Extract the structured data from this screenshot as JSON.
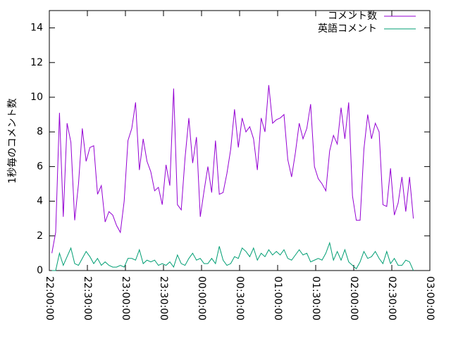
{
  "chart_data": {
    "type": "line",
    "y_label": "1秒毎のコメント数",
    "x": [
      "22:02:00",
      "22:05:00",
      "22:08:00",
      "22:11:00",
      "22:14:00",
      "22:17:00",
      "22:20:00",
      "22:23:00",
      "22:26:00",
      "22:29:00",
      "22:32:00",
      "22:35:00",
      "22:38:00",
      "22:41:00",
      "22:44:00",
      "22:47:00",
      "22:50:00",
      "22:53:00",
      "22:56:00",
      "22:59:00",
      "23:02:00",
      "23:05:00",
      "23:08:00",
      "23:11:00",
      "23:14:00",
      "23:17:00",
      "23:20:00",
      "23:23:00",
      "23:26:00",
      "23:29:00",
      "23:32:00",
      "23:35:00",
      "23:38:00",
      "23:41:00",
      "23:44:00",
      "23:47:00",
      "23:50:00",
      "23:53:00",
      "23:56:00",
      "23:59:00",
      "00:02:00",
      "00:05:00",
      "00:08:00",
      "00:11:00",
      "00:14:00",
      "00:17:00",
      "00:20:00",
      "00:23:00",
      "00:26:00",
      "00:29:00",
      "00:32:00",
      "00:35:00",
      "00:38:00",
      "00:41:00",
      "00:44:00",
      "00:47:00",
      "00:50:00",
      "00:53:00",
      "00:56:00",
      "00:59:00",
      "01:02:00",
      "01:05:00",
      "01:08:00",
      "01:11:00",
      "01:14:00",
      "01:17:00",
      "01:20:00",
      "01:23:00",
      "01:26:00",
      "01:29:00",
      "01:32:00",
      "01:35:00",
      "01:38:00",
      "01:41:00",
      "01:44:00",
      "01:47:00",
      "01:50:00",
      "01:53:00",
      "01:56:00",
      "01:59:00",
      "02:02:00",
      "02:05:00",
      "02:08:00",
      "02:11:00",
      "02:14:00",
      "02:17:00",
      "02:20:00",
      "02:23:00",
      "02:26:00",
      "02:29:00",
      "02:32:00",
      "02:35:00",
      "02:38:00",
      "02:41:00",
      "02:44:00",
      "02:47:00"
    ],
    "series": [
      {
        "name": "コメント数",
        "color": "#9400d3",
        "values": [
          1.0,
          2.2,
          9.1,
          3.1,
          8.5,
          7.4,
          2.9,
          5.0,
          8.2,
          6.3,
          7.1,
          7.2,
          4.4,
          4.9,
          2.8,
          3.4,
          3.2,
          2.6,
          2.2,
          4.0,
          7.5,
          8.2,
          9.7,
          5.8,
          7.6,
          6.3,
          5.7,
          4.6,
          4.8,
          3.8,
          6.1,
          4.9,
          10.5,
          3.8,
          3.5,
          6.5,
          8.8,
          6.2,
          7.7,
          3.1,
          4.6,
          6.0,
          4.5,
          7.5,
          4.4,
          4.5,
          5.6,
          7.0,
          9.3,
          7.1,
          8.8,
          8.0,
          8.3,
          7.6,
          5.8,
          8.8,
          8.0,
          10.7,
          8.5,
          8.7,
          8.8,
          9.0,
          6.4,
          5.4,
          6.8,
          8.5,
          7.6,
          8.2,
          9.6,
          6.0,
          5.3,
          5.0,
          4.6,
          6.9,
          7.8,
          7.3,
          9.4,
          7.6,
          9.7,
          4.3,
          2.9,
          2.9,
          7.0,
          9.0,
          7.6,
          8.5,
          8.0,
          3.8,
          3.7,
          5.9,
          3.2,
          3.9,
          5.4,
          3.4,
          5.4,
          3.0
        ]
      },
      {
        "name": "英語コメント",
        "color": "#009e73",
        "values": [
          0,
          0,
          1.0,
          0.3,
          0.8,
          1.3,
          0.4,
          0.3,
          0.7,
          1.1,
          0.8,
          0.4,
          0.7,
          0.3,
          0.5,
          0.3,
          0.2,
          0.2,
          0.3,
          0.2,
          0.7,
          0.7,
          0.6,
          1.2,
          0.4,
          0.6,
          0.5,
          0.6,
          0.3,
          0.4,
          0.3,
          0.5,
          0.2,
          0.9,
          0.4,
          0.3,
          0.7,
          1.0,
          0.6,
          0.7,
          0.4,
          0.4,
          0.7,
          0.4,
          1.4,
          0.6,
          0.3,
          0.4,
          0.8,
          0.7,
          1.3,
          1.1,
          0.8,
          1.3,
          0.6,
          1.0,
          0.8,
          1.2,
          0.9,
          1.1,
          0.9,
          1.2,
          0.7,
          0.6,
          0.9,
          1.2,
          0.9,
          1.0,
          0.5,
          0.6,
          0.7,
          0.6,
          1.0,
          1.6,
          0.6,
          1.1,
          0.6,
          1.2,
          0.5,
          0.3,
          0.1,
          0.5,
          1.1,
          0.7,
          0.8,
          1.1,
          0.7,
          0.4,
          1.1,
          0.4,
          0.7,
          0.3,
          0.3,
          0.6,
          0.5,
          0
        ]
      }
    ],
    "xlim": [
      "22:00:00",
      "03:00:00"
    ],
    "xticks": [
      "22:00:00",
      "22:30:00",
      "23:00:00",
      "23:30:00",
      "00:00:00",
      "00:30:00",
      "01:00:00",
      "01:30:00",
      "02:00:00",
      "02:30:00",
      "03:00:00"
    ],
    "ylim": [
      0,
      15
    ],
    "yticks": [
      0,
      2,
      4,
      6,
      8,
      10,
      12,
      14
    ],
    "legend": "top-right"
  }
}
